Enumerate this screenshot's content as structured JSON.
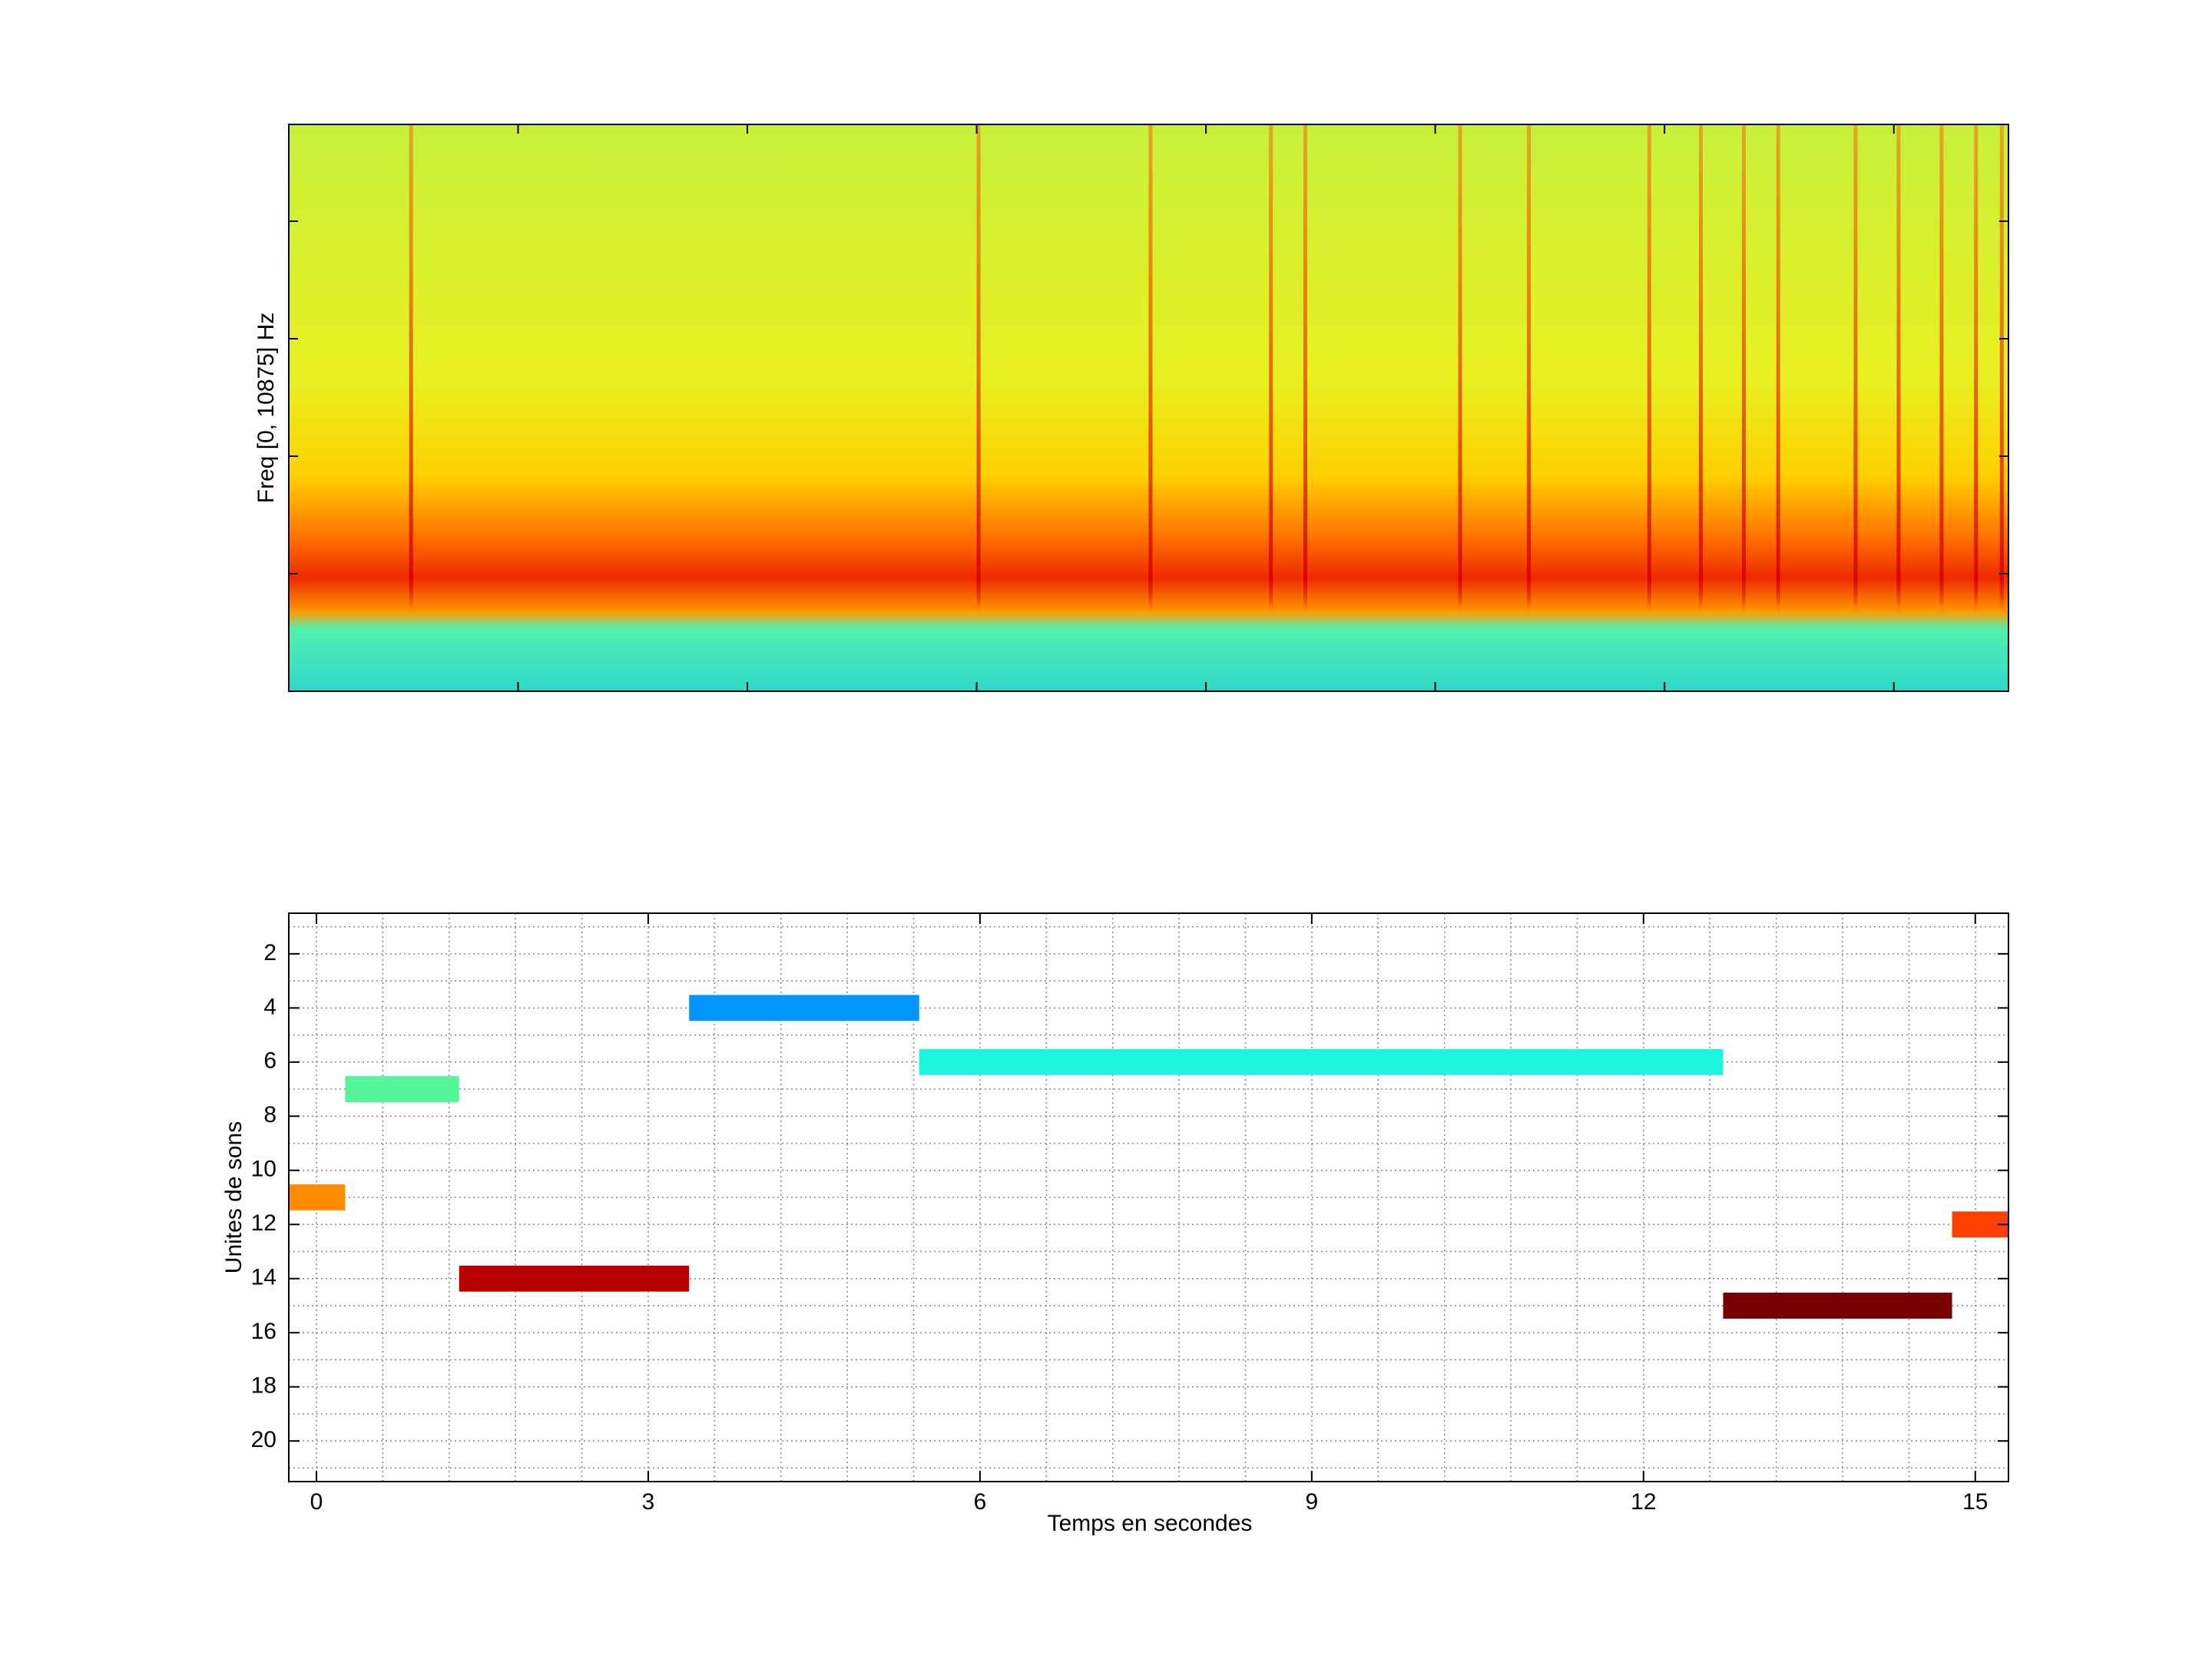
{
  "chart_data": [
    {
      "type": "spectrogram",
      "y_label": "Freq [0, 10875] Hz"
    },
    {
      "type": "timeline",
      "x_label": "Temps en secondes",
      "y_label": "Unites de sons",
      "xlim": [
        -0.25,
        15.3
      ],
      "xticks": [
        0,
        3,
        6,
        9,
        12,
        15
      ],
      "ylim": [
        0.5,
        21.5
      ],
      "yticks": [
        2,
        4,
        6,
        8,
        10,
        12,
        14,
        16,
        18,
        20
      ],
      "y_reversed": true,
      "grid": true,
      "x_grid_step": 0.6,
      "y_grid_step": 1,
      "segments": [
        {
          "unit": 11,
          "start": -0.25,
          "end": 0.26,
          "color": "#ff8c00"
        },
        {
          "unit": 7,
          "start": 0.26,
          "end": 1.29,
          "color": "#55f59a"
        },
        {
          "unit": 14,
          "start": 1.29,
          "end": 3.37,
          "color": "#b80000"
        },
        {
          "unit": 4,
          "start": 3.37,
          "end": 5.45,
          "color": "#0096ff"
        },
        {
          "unit": 6,
          "start": 5.45,
          "end": 12.72,
          "color": "#1ef5e1"
        },
        {
          "unit": 15,
          "start": 12.72,
          "end": 14.79,
          "color": "#7a0000"
        },
        {
          "unit": 12,
          "start": 14.79,
          "end": 15.3,
          "color": "#ff4000"
        }
      ]
    }
  ]
}
